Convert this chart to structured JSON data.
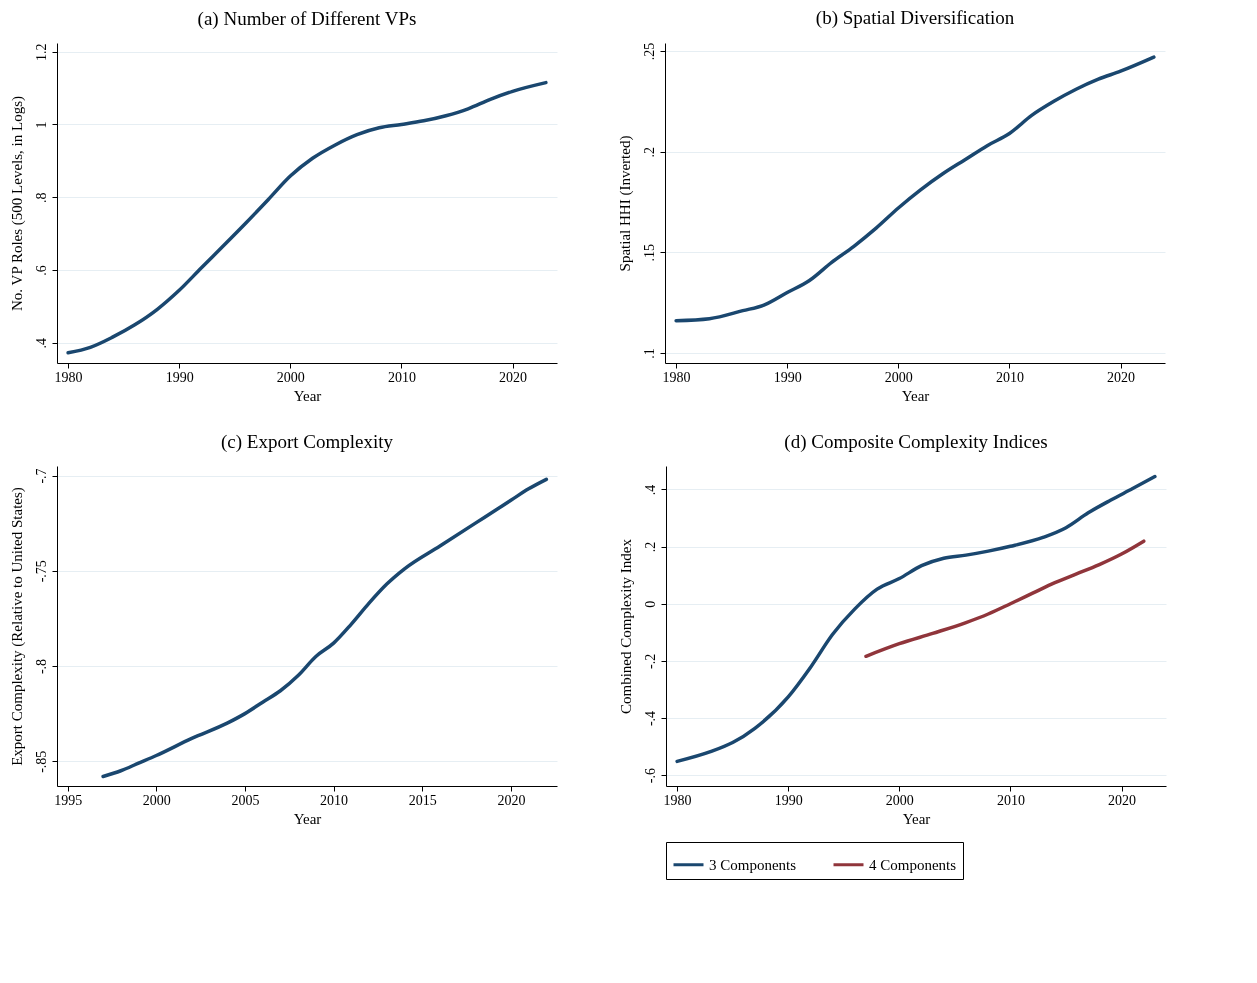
{
  "chart_data": [
    {
      "type": "line",
      "title": "(a) Number of Different VPs",
      "xlabel": "Year",
      "ylabel": "No. VP Roles (500 Levels, in Logs)",
      "xlim": [
        1979,
        2024
      ],
      "xticks": [
        1980,
        1990,
        2000,
        2010,
        2020
      ],
      "ylim": [
        0.344,
        1.224
      ],
      "yticks": [
        {
          "value": 0.4,
          "label": ".4"
        },
        {
          "value": 0.6,
          "label": ".6"
        },
        {
          "value": 0.8,
          "label": ".8"
        },
        1,
        {
          "value": 1.2,
          "label": "1.2"
        }
      ],
      "grid": "y",
      "legend": false,
      "series": [
        {
          "color": "#1a476f",
          "x": [
            1980,
            1982,
            1984,
            1986,
            1988,
            1990,
            1992,
            1994,
            1996,
            1998,
            2000,
            2002,
            2004,
            2006,
            2008,
            2010,
            2012,
            2014,
            2016,
            2018,
            2020,
            2023
          ],
          "values": [
            0.372,
            0.387,
            0.415,
            0.449,
            0.491,
            0.544,
            0.606,
            0.667,
            0.729,
            0.793,
            0.858,
            0.907,
            0.943,
            0.972,
            0.991,
            1.0,
            1.01,
            1.024,
            1.043,
            1.069,
            1.091,
            1.115
          ]
        }
      ]
    },
    {
      "type": "line",
      "title": "(b) Spatial Diversification",
      "xlabel": "Year",
      "ylabel": "Spatial HHI (Inverted)",
      "xlim": [
        1979,
        2024
      ],
      "xticks": [
        1980,
        1990,
        2000,
        2010,
        2020
      ],
      "ylim": [
        0.095,
        0.254
      ],
      "yticks": [
        {
          "value": 0.1,
          "label": ".1"
        },
        {
          "value": 0.15,
          "label": ".15"
        },
        {
          "value": 0.2,
          "label": ".2"
        },
        {
          "value": 0.25,
          "label": ".25"
        }
      ],
      "grid": "y",
      "legend": false,
      "series": [
        {
          "color": "#1a476f",
          "x": [
            1980,
            1983,
            1986,
            1988,
            1990,
            1992,
            1994,
            1996,
            1998,
            2000,
            2002,
            2004,
            2006,
            2008,
            2010,
            2012,
            2014,
            2016,
            2018,
            2020,
            2023
          ],
          "values": [
            0.116,
            0.117,
            0.121,
            0.124,
            0.13,
            0.136,
            0.145,
            0.153,
            0.162,
            0.172,
            0.181,
            0.189,
            0.196,
            0.203,
            0.209,
            0.218,
            0.225,
            0.231,
            0.236,
            0.24,
            0.247
          ]
        }
      ]
    },
    {
      "type": "line",
      "title": "(c) Export Complexity",
      "xlabel": "Year",
      "ylabel": "Export Complexity (Relative to United States)",
      "xlim": [
        1994.4,
        2022.6
      ],
      "xticks": [
        1995,
        2000,
        2005,
        2010,
        2015,
        2020
      ],
      "ylim": [
        -0.863,
        -0.695
      ],
      "yticks": [
        {
          "value": -0.85,
          "label": "-.85"
        },
        {
          "value": -0.8,
          "label": "-.8"
        },
        {
          "value": -0.75,
          "label": "-.75"
        },
        {
          "value": -0.7,
          "label": "-.7"
        }
      ],
      "grid": "y",
      "legend": false,
      "series": [
        {
          "color": "#1a476f",
          "x": [
            1997,
            1998,
            1999,
            2000,
            2002,
            2004,
            2005,
            2006,
            2007,
            2008,
            2009,
            2010,
            2011,
            2012,
            2013,
            2014,
            2016,
            2018,
            2019,
            2020,
            2021,
            2022
          ],
          "values": [
            -0.858,
            -0.855,
            -0.851,
            -0.847,
            -0.838,
            -0.83,
            -0.825,
            -0.819,
            -0.813,
            -0.805,
            -0.795,
            -0.788,
            -0.778,
            -0.767,
            -0.757,
            -0.749,
            -0.737,
            -0.725,
            -0.719,
            -0.713,
            -0.707,
            -0.702
          ]
        }
      ]
    },
    {
      "type": "line",
      "title": "(d) Composite Complexity Indices",
      "xlabel": "Year",
      "ylabel": "Combined Complexity Index",
      "xlim": [
        1979,
        2024
      ],
      "xticks": [
        1980,
        1990,
        2000,
        2010,
        2020
      ],
      "ylim": [
        -0.638,
        0.482
      ],
      "yticks": [
        {
          "value": -0.6,
          "label": "-.6"
        },
        {
          "value": -0.4,
          "label": "-.4"
        },
        {
          "value": -0.2,
          "label": "-.2"
        },
        0,
        {
          "value": 0.2,
          "label": ".2"
        },
        {
          "value": 0.4,
          "label": ".4"
        }
      ],
      "grid": "y",
      "legend": "bottom",
      "series": [
        {
          "name": "3 Components",
          "color": "#1a476f",
          "x": [
            1980,
            1983,
            1985,
            1987,
            1990,
            1992,
            1994,
            1996,
            1998,
            2000,
            2002,
            2004,
            2006,
            2008,
            2010,
            2013,
            2015,
            2017,
            2019,
            2021,
            2023
          ],
          "values": [
            -0.552,
            -0.518,
            -0.486,
            -0.436,
            -0.326,
            -0.223,
            -0.107,
            -0.018,
            0.051,
            0.088,
            0.133,
            0.159,
            0.17,
            0.184,
            0.201,
            0.233,
            0.266,
            0.318,
            0.362,
            0.403,
            0.445
          ]
        },
        {
          "name": "4 Components",
          "color": "#90353b",
          "x": [
            1997,
            2000,
            2003,
            2006,
            2008,
            2010,
            2012,
            2014,
            2016,
            2018,
            2020,
            2022
          ],
          "values": [
            -0.184,
            -0.14,
            -0.104,
            -0.066,
            -0.036,
            0.0,
            0.037,
            0.074,
            0.105,
            0.137,
            0.174,
            0.219
          ]
        }
      ]
    }
  ]
}
